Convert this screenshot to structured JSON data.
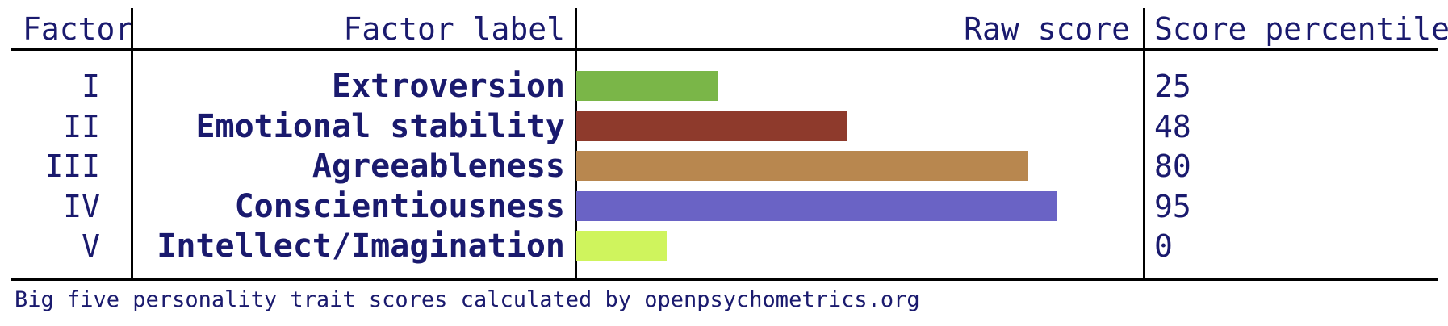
{
  "chart_data": {
    "type": "table",
    "columns": [
      "Factor",
      "Factor label",
      "Raw score",
      "Score percentile"
    ],
    "rows": [
      {
        "factor": "I",
        "label": "Extroversion",
        "raw": 25,
        "percentile": "25",
        "color": "#7ab648"
      },
      {
        "factor": "II",
        "label": "Emotional stability",
        "raw": 48,
        "percentile": "48",
        "color": "#8e3a2c"
      },
      {
        "factor": "III",
        "label": "Agreeableness",
        "raw": 80,
        "percentile": "80",
        "color": "#b8874f"
      },
      {
        "factor": "IV",
        "label": "Conscientiousness",
        "raw": 85,
        "percentile": "95",
        "color": "#6a63c5"
      },
      {
        "factor": "V",
        "label": "Intellect/Imagination",
        "raw": 16,
        "percentile": "0",
        "color": "#cff45d"
      }
    ],
    "footer": "Big five personality trait scores calculated by openpsychometrics.org"
  }
}
